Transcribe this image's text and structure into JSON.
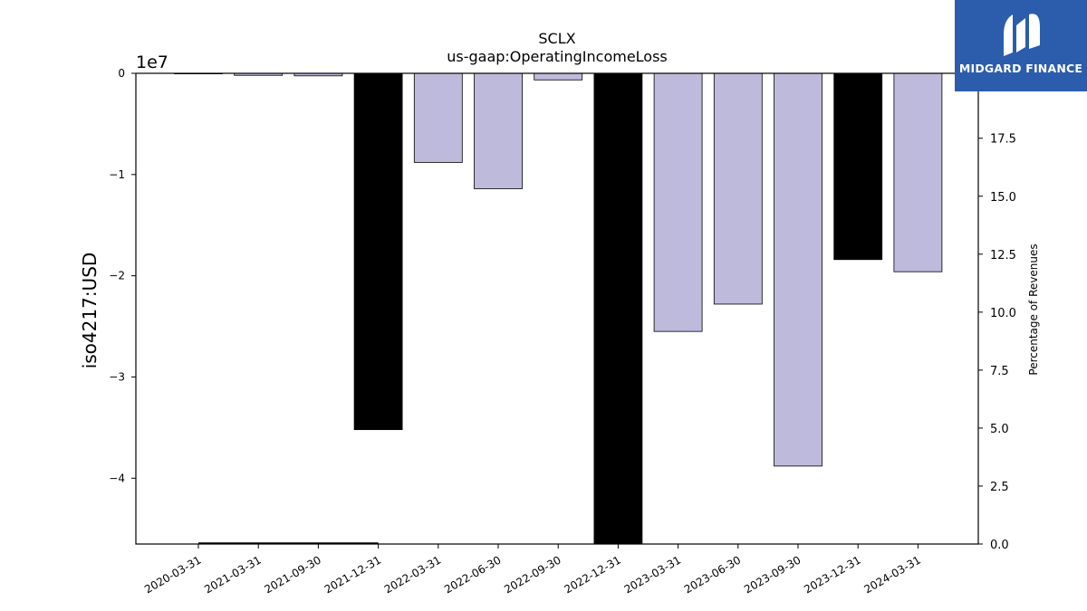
{
  "brand": {
    "name": "MIDGARD FINANCE"
  },
  "chart_data": {
    "type": "bar",
    "title": "SCLX",
    "subtitle": "us-gaap:OperatingIncomeLoss",
    "ylabel": "iso4217:USD",
    "y_offset_label": "1e7",
    "y2label": "Percentage of Revenues",
    "ylim": [
      -46500000,
      0
    ],
    "y_ticks": [
      0,
      -10000000,
      -20000000,
      -30000000,
      -40000000
    ],
    "y_tick_labels": [
      "0",
      "−1",
      "−2",
      "−3",
      "−4"
    ],
    "y2lim": [
      0,
      20.3
    ],
    "y2_ticks": [
      0,
      2.5,
      5,
      7.5,
      10,
      12.5,
      15,
      17.5
    ],
    "y2_tick_labels": [
      "0.0",
      "2.5",
      "5.0",
      "7.5",
      "10.0",
      "12.5",
      "15.0",
      "17.5"
    ],
    "categories": [
      "2020-03-31",
      "2021-03-31",
      "2021-09-30",
      "2021-12-31",
      "2022-03-31",
      "2022-06-30",
      "2022-09-30",
      "2022-12-31",
      "2023-03-31",
      "2023-06-30",
      "2023-09-30",
      "2023-12-31",
      "2024-03-31"
    ],
    "values": [
      0,
      -200000,
      -250000,
      -35200000,
      -8800000,
      -11400000,
      -650000,
      -46500000,
      -25500000,
      -22800000,
      -38800000,
      -18400000,
      -19600000
    ],
    "bar_colors": [
      "#bebadb",
      "#bebadb",
      "#bebadb",
      "#000000",
      "#bebadb",
      "#bebadb",
      "#bebadb",
      "#000000",
      "#bebadb",
      "#bebadb",
      "#bebadb",
      "#000000",
      "#bebadb"
    ],
    "line_series": {
      "x": [
        "2020-03-31",
        "2021-12-31"
      ],
      "values": [
        0.03,
        0.03
      ],
      "color": "#000000"
    },
    "grid": false,
    "legend": "none"
  }
}
